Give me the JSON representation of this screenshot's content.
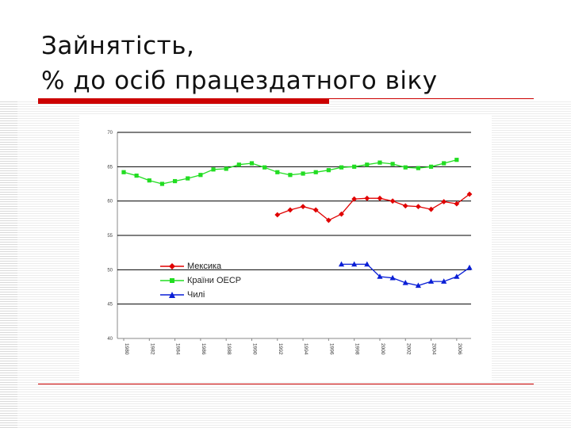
{
  "title": {
    "line1": "Зайнятість,",
    "line2": "% до осіб працездатного віку"
  },
  "colors": {
    "accent_red": "#cc0000",
    "mexico": "#e00000",
    "oecd": "#22dd22",
    "chile": "#0a1fd6"
  },
  "chart_data": {
    "type": "line",
    "x": [
      1980,
      1981,
      1982,
      1983,
      1984,
      1985,
      1986,
      1987,
      1988,
      1989,
      1990,
      1991,
      1992,
      1993,
      1994,
      1995,
      1996,
      1997,
      1998,
      1999,
      2000,
      2001,
      2002,
      2003,
      2004,
      2005,
      2006,
      2007
    ],
    "x_tick_labels": [
      "1980",
      "1982",
      "1984",
      "1986",
      "1988",
      "1990",
      "1992",
      "1994",
      "1996",
      "1998",
      "2000",
      "2002",
      "2004",
      "2006"
    ],
    "x_tick_values": [
      1980,
      1982,
      1984,
      1986,
      1988,
      1990,
      1992,
      1994,
      1996,
      1998,
      2000,
      2002,
      2004,
      2006
    ],
    "ylim": [
      40,
      70
    ],
    "y_ticks": [
      40,
      45,
      50,
      55,
      60,
      65,
      70
    ],
    "grid": true,
    "legend_position": "center-left",
    "series": [
      {
        "name": "Мексика",
        "marker": "diamond",
        "values": [
          null,
          null,
          null,
          null,
          null,
          null,
          null,
          null,
          null,
          null,
          null,
          null,
          58.0,
          58.7,
          59.2,
          58.7,
          57.2,
          58.1,
          60.3,
          60.4,
          60.4,
          60.0,
          59.3,
          59.2,
          58.8,
          59.9,
          59.6,
          61.0
        ]
      },
      {
        "name": "Країни ОЕСР",
        "marker": "square",
        "values": [
          64.2,
          63.7,
          63.0,
          62.5,
          62.9,
          63.3,
          63.8,
          64.6,
          64.7,
          65.3,
          65.5,
          64.9,
          64.2,
          63.8,
          64.0,
          64.2,
          64.5,
          64.9,
          65.0,
          65.3,
          65.6,
          65.4,
          64.9,
          64.8,
          65.0,
          65.5,
          66.0,
          null
        ]
      },
      {
        "name": "Чилі",
        "marker": "triangle",
        "values": [
          null,
          null,
          null,
          null,
          null,
          null,
          null,
          null,
          null,
          null,
          null,
          null,
          null,
          null,
          null,
          null,
          null,
          50.8,
          50.8,
          50.8,
          49.0,
          48.8,
          48.1,
          47.7,
          48.3,
          48.3,
          49.0,
          50.3
        ]
      }
    ]
  }
}
